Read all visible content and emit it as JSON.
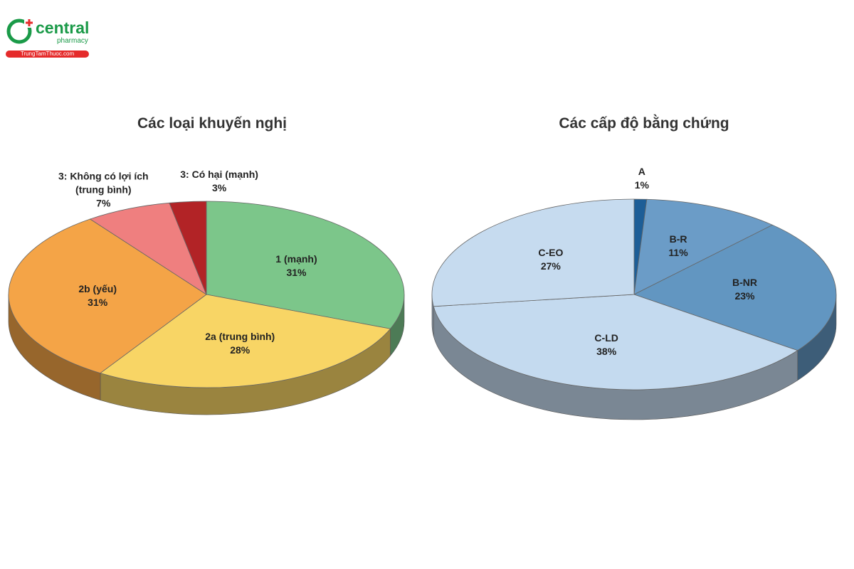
{
  "logo": {
    "name": "central",
    "sub": "pharmacy",
    "site": "TrungTamThuoc.com"
  },
  "chart_data": [
    {
      "type": "pie",
      "title": "Các loại khuyến nghị",
      "categories": [
        "1 (mạnh)",
        "2a (trung bình)",
        "2b (yếu)",
        "3: Không có lợi ích (trung bình)",
        "3: Có hại (mạnh)"
      ],
      "values": [
        31,
        28,
        31,
        7,
        3
      ],
      "value_labels": [
        "31%",
        "28%",
        "31%",
        "7%",
        "3%"
      ],
      "colors": [
        "#7cc68a",
        "#f8d565",
        "#f4a447",
        "#ef7f7f",
        "#b22326"
      ]
    },
    {
      "type": "pie",
      "title": "Các cấp độ bằng chứng",
      "categories": [
        "A",
        "B-R",
        "B-NR",
        "C-LD",
        "C-EO"
      ],
      "values": [
        1,
        11,
        23,
        38,
        27
      ],
      "value_labels": [
        "1%",
        "11%",
        "23%",
        "38%",
        "27%"
      ],
      "colors": [
        "#1d5e97",
        "#6b9cc7",
        "#6296c1",
        "#c4daef",
        "#c6dbef"
      ]
    }
  ]
}
